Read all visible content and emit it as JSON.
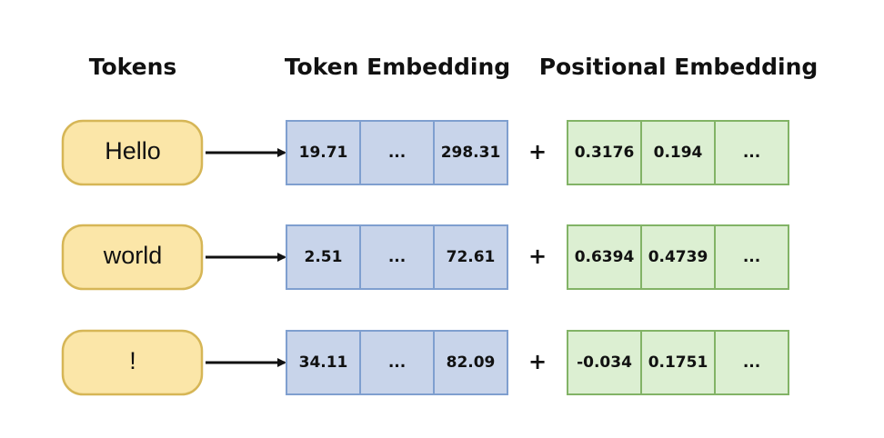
{
  "headers": [
    "Tokens",
    "Token Embedding",
    "Positional Embedding"
  ],
  "rows": [
    {
      "token": "Hello",
      "token_embedding": [
        "19.71",
        "...",
        "298.31"
      ],
      "operator": "+",
      "positional_embedding": [
        "0.3176",
        "0.194",
        "..."
      ]
    },
    {
      "token": "world",
      "token_embedding": [
        "2.51",
        "...",
        "72.61"
      ],
      "operator": "+",
      "positional_embedding": [
        "0.6394",
        "0.4739",
        "..."
      ]
    },
    {
      "token": "!",
      "token_embedding": [
        "34.11",
        "...",
        "82.09"
      ],
      "operator": "+",
      "positional_embedding": [
        "-0.034",
        "0.1751",
        "..."
      ]
    }
  ]
}
